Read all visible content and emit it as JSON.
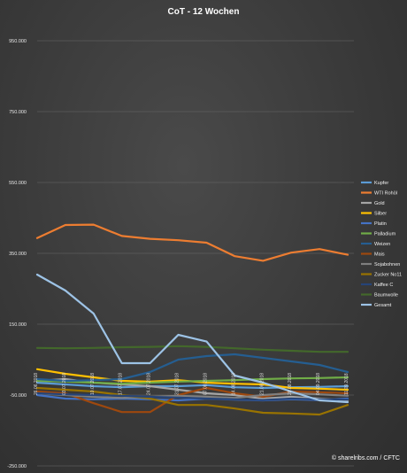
{
  "chart_data": {
    "type": "line",
    "title": "CoT - 12 Wochen",
    "credit": "© sharelribs.com / CFTC",
    "xlabel": "",
    "ylabel": "",
    "ylim": [
      -250000,
      950000
    ],
    "yticks": [
      950000,
      750000,
      550000,
      350000,
      150000,
      -50000,
      -250000
    ],
    "ytick_labels": [
      "950.000",
      "750.000",
      "550.000",
      "350.000",
      "150.000",
      "-50.000",
      "-250.000"
    ],
    "grid": true,
    "legend": "right",
    "categories": [
      "26.06.2018",
      "03.07.2018",
      "10.07.2018",
      "17.07.2018",
      "24.07.2018",
      "31.07.2018",
      "07.08.2018",
      "14.08.2018",
      "21.08.2018",
      "28.08.2018",
      "04.09.2018",
      "11.09.2018"
    ],
    "series": [
      {
        "name": "Kupfer",
        "color": "#5b9bd5",
        "values": [
          -15000,
          -20000,
          -25000,
          -28000,
          -25000,
          -25000,
          -22000,
          -28000,
          -30000,
          -28000,
          -27000,
          -25000
        ]
      },
      {
        "name": "WTI Rohöl",
        "color": "#ed7d31",
        "values": [
          393000,
          430000,
          431000,
          399000,
          391000,
          387000,
          380000,
          342000,
          329000,
          352000,
          362000,
          346000
        ]
      },
      {
        "name": "Gold",
        "color": "#a5a5a5",
        "values": [
          -10000,
          -5000,
          -15000,
          -20000,
          -25000,
          -35000,
          -45000,
          -50000,
          -60000,
          -55000,
          -60000,
          -65000
        ]
      },
      {
        "name": "Silber",
        "color": "#ffc000",
        "values": [
          23000,
          10000,
          0,
          -10000,
          -12000,
          -8000,
          -15000,
          -18000,
          -20000,
          -30000,
          -32000,
          -35000
        ]
      },
      {
        "name": "Platin",
        "color": "#4472c4",
        "values": [
          -50000,
          -60000,
          -62000,
          -60000,
          -62000,
          -65000,
          -60000,
          -63000,
          -65000,
          -62000,
          -64000,
          -60000
        ]
      },
      {
        "name": "Palladium",
        "color": "#70ad47",
        "values": [
          -10000,
          -12000,
          -15000,
          -18000,
          -15000,
          -12000,
          -10000,
          -8000,
          -5000,
          -3000,
          -2000,
          0
        ]
      },
      {
        "name": "Weizen",
        "color": "#255e91",
        "values": [
          -5000,
          -10000,
          -8000,
          -5000,
          15000,
          50000,
          60000,
          65000,
          55000,
          45000,
          35000,
          15000
        ]
      },
      {
        "name": "Mais",
        "color": "#9e480e",
        "values": [
          -40000,
          -45000,
          -73000,
          -98000,
          -98000,
          -50000,
          -30000,
          -45000,
          -55000,
          -40000,
          -42000,
          -45000
        ]
      },
      {
        "name": "Sojabohnen",
        "color": "#7f7f7f",
        "values": [
          -45000,
          -50000,
          -55000,
          -58000,
          -55000,
          -52000,
          -55000,
          -58000,
          -50000,
          -45000,
          -48000,
          -52000
        ]
      },
      {
        "name": "Zucker No11",
        "color": "#997300",
        "values": [
          -30000,
          -35000,
          -40000,
          -50000,
          -60000,
          -78000,
          -78000,
          -88000,
          -100000,
          -102000,
          -105000,
          -78000
        ]
      },
      {
        "name": "Kaffee C",
        "color": "#264478",
        "values": [
          -45000,
          -48000,
          -50000,
          -52000,
          -55000,
          -57000,
          -60000,
          -62000,
          -64000,
          -60000,
          -62000,
          -63000
        ]
      },
      {
        "name": "Baumwolle",
        "color": "#43682b",
        "values": [
          83000,
          82000,
          83000,
          85000,
          86000,
          88000,
          86000,
          82000,
          78000,
          75000,
          72000,
          72000
        ]
      },
      {
        "name": "Gesamt",
        "color": "#9dc3e6",
        "values": [
          290000,
          245000,
          180000,
          40000,
          40000,
          120000,
          101000,
          5000,
          -15000,
          -40000,
          -65000,
          -70000
        ]
      }
    ]
  }
}
